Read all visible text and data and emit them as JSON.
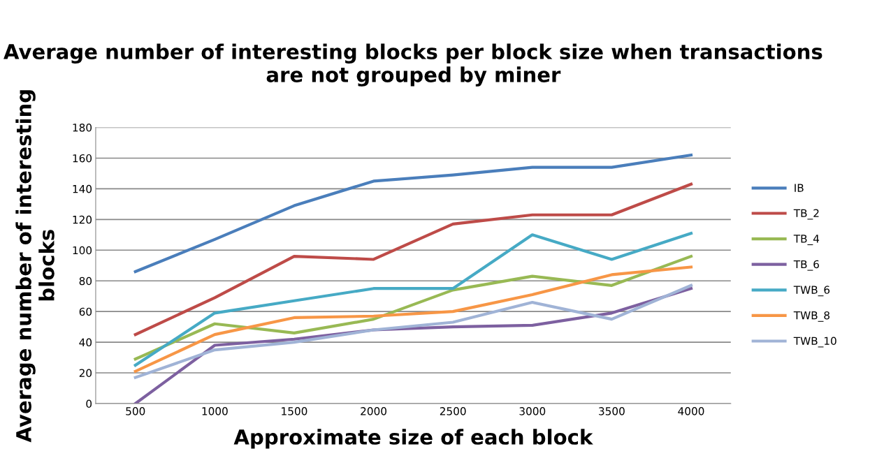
{
  "chart_data": {
    "type": "line",
    "title": "Average number of interesting blocks per block size when transactions are not grouped by miner",
    "xlabel": "Approximate size of each block",
    "ylabel": "Average number of interesting blocks",
    "categories": [
      "500",
      "1000",
      "1500",
      "2000",
      "2500",
      "3000",
      "3500",
      "4000"
    ],
    "ylim": [
      0,
      180
    ],
    "yticks": [
      0,
      20,
      40,
      60,
      80,
      100,
      120,
      140,
      160,
      180
    ],
    "grid": "y",
    "legend": "right",
    "series": [
      {
        "name": "IB",
        "color": "#4a7ebb",
        "values": [
          86,
          107,
          129,
          145,
          149,
          154,
          154,
          162
        ]
      },
      {
        "name": "TB_2",
        "color": "#be4b48",
        "values": [
          45,
          69,
          96,
          94,
          117,
          123,
          123,
          143
        ]
      },
      {
        "name": "TB_4",
        "color": "#98b954",
        "values": [
          29,
          52,
          46,
          55,
          74,
          83,
          77,
          96
        ]
      },
      {
        "name": "TB_6",
        "color": "#7d60a0",
        "values": [
          0,
          38,
          42,
          48,
          50,
          51,
          59,
          75
        ]
      },
      {
        "name": "TWB_6",
        "color": "#46aac5",
        "values": [
          25,
          59,
          67,
          75,
          75,
          110,
          94,
          111
        ]
      },
      {
        "name": "TWB_8",
        "color": "#f79646",
        "values": [
          21,
          45,
          56,
          57,
          60,
          71,
          84,
          89
        ]
      },
      {
        "name": "TWB_10",
        "color": "#a0b3d6",
        "values": [
          17,
          35,
          40,
          48,
          53,
          66,
          55,
          77
        ]
      }
    ]
  }
}
